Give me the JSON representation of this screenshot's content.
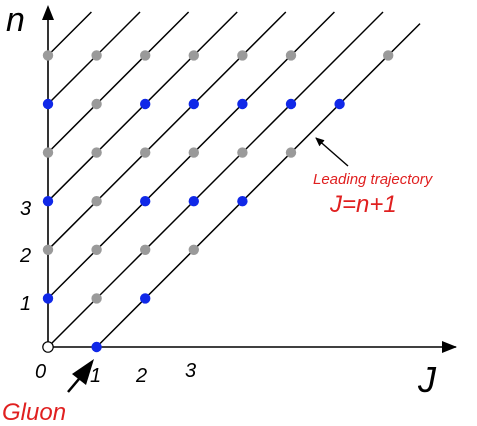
{
  "labels": {
    "y_axis": "n",
    "x_axis": "J",
    "y_ticks": [
      "1",
      "2",
      "3"
    ],
    "x_ticks": [
      "0",
      "1",
      "2",
      "3"
    ],
    "annotation_title": "Leading trajectory",
    "annotation_formula": "J=n+1",
    "gluon": "Gluon"
  },
  "colors": {
    "blue": "#1028e8",
    "gray": "#9a9a9a",
    "red": "#e02020",
    "line": "#000000",
    "axis": "#000000"
  },
  "grid": {
    "half_step_units": true,
    "j_max": 7,
    "n_max": 12,
    "diagonal_offsets": [
      -2,
      0,
      2,
      4,
      6,
      8,
      10,
      12
    ]
  },
  "points": [
    {
      "j": 0,
      "n": 0,
      "kind": "open"
    },
    {
      "j": 2,
      "n": 0,
      "kind": "blue"
    },
    {
      "j": 0,
      "n": 2,
      "kind": "blue"
    },
    {
      "j": 2,
      "n": 2,
      "kind": "gray"
    },
    {
      "j": 4,
      "n": 2,
      "kind": "blue"
    },
    {
      "j": 0,
      "n": 4,
      "kind": "gray"
    },
    {
      "j": 2,
      "n": 4,
      "kind": "gray"
    },
    {
      "j": 4,
      "n": 4,
      "kind": "gray"
    },
    {
      "j": 6,
      "n": 4,
      "kind": "gray"
    },
    {
      "j": 0,
      "n": 6,
      "kind": "blue"
    },
    {
      "j": 2,
      "n": 6,
      "kind": "gray"
    },
    {
      "j": 4,
      "n": 6,
      "kind": "blue"
    },
    {
      "j": 6,
      "n": 6,
      "kind": "blue"
    },
    {
      "j": 8,
      "n": 6,
      "kind": "blue"
    },
    {
      "j": 0,
      "n": 8,
      "kind": "gray"
    },
    {
      "j": 2,
      "n": 8,
      "kind": "gray"
    },
    {
      "j": 4,
      "n": 8,
      "kind": "gray"
    },
    {
      "j": 6,
      "n": 8,
      "kind": "gray"
    },
    {
      "j": 8,
      "n": 8,
      "kind": "gray"
    },
    {
      "j": 10,
      "n": 8,
      "kind": "gray"
    },
    {
      "j": 0,
      "n": 10,
      "kind": "blue"
    },
    {
      "j": 2,
      "n": 10,
      "kind": "gray"
    },
    {
      "j": 4,
      "n": 10,
      "kind": "blue"
    },
    {
      "j": 6,
      "n": 10,
      "kind": "blue"
    },
    {
      "j": 8,
      "n": 10,
      "kind": "blue"
    },
    {
      "j": 10,
      "n": 10,
      "kind": "blue"
    },
    {
      "j": 12,
      "n": 10,
      "kind": "blue"
    },
    {
      "j": 0,
      "n": 12,
      "kind": "gray"
    },
    {
      "j": 2,
      "n": 12,
      "kind": "gray"
    },
    {
      "j": 4,
      "n": 12,
      "kind": "gray"
    },
    {
      "j": 6,
      "n": 12,
      "kind": "gray"
    },
    {
      "j": 8,
      "n": 12,
      "kind": "gray"
    },
    {
      "j": 10,
      "n": 12,
      "kind": "gray"
    },
    {
      "j": 14,
      "n": 12,
      "kind": "gray"
    }
  ]
}
